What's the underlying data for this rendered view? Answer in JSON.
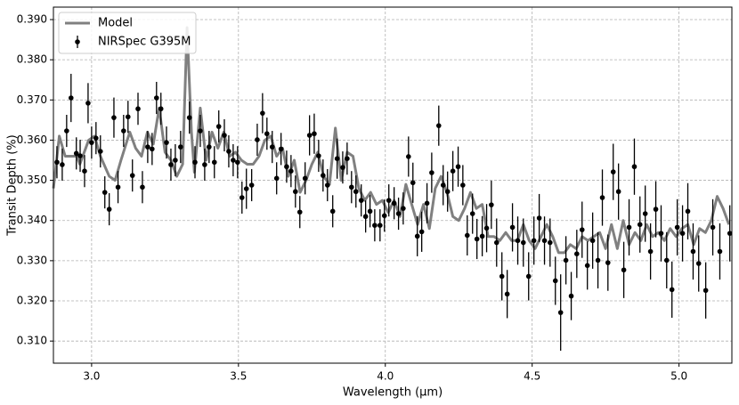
{
  "chart_data": {
    "type": "errorbar",
    "xlabel": "Wavelength (μm)",
    "ylabel": "Transit Depth (%)",
    "xlim": [
      2.87,
      5.18
    ],
    "ylim": [
      0.3045,
      0.3931
    ],
    "xticks": [
      {
        "value": 3,
        "label": "3.0"
      },
      {
        "value": 3.5,
        "label": "3.5"
      },
      {
        "value": 4,
        "label": "4.0"
      },
      {
        "value": 4.5,
        "label": "4.5"
      },
      {
        "value": 5,
        "label": "5.0"
      }
    ],
    "yticks": [
      {
        "value": 0.31,
        "label": "0.310"
      },
      {
        "value": 0.32,
        "label": "0.320"
      },
      {
        "value": 0.33,
        "label": "0.330"
      },
      {
        "value": 0.34,
        "label": "0.340"
      },
      {
        "value": 0.35,
        "label": "0.350"
      },
      {
        "value": 0.36,
        "label": "0.360"
      },
      {
        "value": 0.37,
        "label": "0.370"
      },
      {
        "value": 0.38,
        "label": "0.380"
      },
      {
        "value": 0.39,
        "label": "0.390"
      }
    ],
    "grid": true,
    "legend": "upper left",
    "series": [
      {
        "name": "Model",
        "color": "#808080",
        "x": [
          2.87,
          2.89,
          2.91,
          2.95,
          2.96,
          2.99,
          3.01,
          3.03,
          3.06,
          3.08,
          3.1,
          3.13,
          3.15,
          3.17,
          3.19,
          3.21,
          3.23,
          3.25,
          3.27,
          3.29,
          3.31,
          3.325,
          3.34,
          3.35,
          3.37,
          3.39,
          3.41,
          3.43,
          3.45,
          3.47,
          3.49,
          3.51,
          3.53,
          3.55,
          3.57,
          3.59,
          3.61,
          3.63,
          3.65,
          3.67,
          3.69,
          3.71,
          3.73,
          3.75,
          3.77,
          3.79,
          3.81,
          3.83,
          3.85,
          3.87,
          3.89,
          3.91,
          3.93,
          3.95,
          3.97,
          3.99,
          4.01,
          4.03,
          4.05,
          4.07,
          4.09,
          4.11,
          4.13,
          4.15,
          4.17,
          4.19,
          4.21,
          4.23,
          4.25,
          4.27,
          4.29,
          4.31,
          4.33,
          4.35,
          4.37,
          4.39,
          4.41,
          4.43,
          4.45,
          4.47,
          4.49,
          4.51,
          4.53,
          4.55,
          4.57,
          4.59,
          4.61,
          4.63,
          4.65,
          4.67,
          4.69,
          4.71,
          4.73,
          4.75,
          4.77,
          4.79,
          4.81,
          4.83,
          4.85,
          4.87,
          4.89,
          4.91,
          4.93,
          4.95,
          4.97,
          4.99,
          5.01,
          5.03,
          5.05,
          5.07,
          5.09,
          5.11,
          5.13,
          5.15,
          5.17
        ],
        "values": [
          0.348,
          0.361,
          0.356,
          0.356,
          0.354,
          0.36,
          0.361,
          0.356,
          0.351,
          0.35,
          0.355,
          0.362,
          0.358,
          0.356,
          0.362,
          0.359,
          0.368,
          0.357,
          0.355,
          0.351,
          0.354,
          0.388,
          0.362,
          0.352,
          0.368,
          0.355,
          0.362,
          0.358,
          0.362,
          0.356,
          0.357,
          0.355,
          0.354,
          0.354,
          0.356,
          0.36,
          0.361,
          0.356,
          0.358,
          0.351,
          0.355,
          0.347,
          0.35,
          0.354,
          0.357,
          0.351,
          0.349,
          0.363,
          0.35,
          0.357,
          0.356,
          0.348,
          0.345,
          0.347,
          0.344,
          0.345,
          0.342,
          0.345,
          0.341,
          0.349,
          0.344,
          0.339,
          0.344,
          0.338,
          0.348,
          0.351,
          0.347,
          0.341,
          0.34,
          0.343,
          0.347,
          0.343,
          0.344,
          0.336,
          0.336,
          0.335,
          0.337,
          0.335,
          0.335,
          0.339,
          0.335,
          0.333,
          0.336,
          0.339,
          0.336,
          0.332,
          0.332,
          0.334,
          0.333,
          0.336,
          0.335,
          0.336,
          0.337,
          0.333,
          0.339,
          0.333,
          0.34,
          0.334,
          0.337,
          0.335,
          0.339,
          0.336,
          0.337,
          0.335,
          0.338,
          0.336,
          0.338,
          0.339,
          0.334,
          0.338,
          0.337,
          0.34,
          0.346,
          0.343,
          0.339
        ]
      },
      {
        "name": "NIRSpec G395M",
        "color": "#000000",
        "x": [
          2.882,
          2.9,
          2.915,
          2.93,
          2.948,
          2.961,
          2.976,
          2.988,
          3.0,
          3.015,
          3.03,
          3.045,
          3.06,
          3.076,
          3.09,
          3.109,
          3.124,
          3.139,
          3.158,
          3.173,
          3.191,
          3.206,
          3.221,
          3.236,
          3.255,
          3.27,
          3.285,
          3.303,
          3.333,
          3.352,
          3.37,
          3.385,
          3.4,
          3.418,
          3.433,
          3.452,
          3.467,
          3.482,
          3.497,
          3.512,
          3.527,
          3.545,
          3.564,
          3.582,
          3.597,
          3.615,
          3.63,
          3.645,
          3.664,
          3.679,
          3.694,
          3.709,
          3.727,
          3.742,
          3.758,
          3.773,
          3.788,
          3.803,
          3.821,
          3.836,
          3.855,
          3.87,
          3.885,
          3.9,
          3.918,
          3.933,
          3.948,
          3.964,
          3.982,
          3.997,
          4.012,
          4.03,
          4.045,
          4.061,
          4.079,
          4.094,
          4.109,
          4.124,
          4.142,
          4.158,
          4.182,
          4.197,
          4.212,
          4.23,
          4.248,
          4.264,
          4.279,
          4.297,
          4.312,
          4.33,
          4.345,
          4.361,
          4.379,
          4.397,
          4.415,
          4.433,
          4.451,
          4.47,
          4.488,
          4.506,
          4.524,
          4.542,
          4.561,
          4.579,
          4.597,
          4.615,
          4.633,
          4.652,
          4.67,
          4.688,
          4.706,
          4.724,
          4.739,
          4.758,
          4.776,
          4.794,
          4.812,
          4.83,
          4.848,
          4.867,
          4.885,
          4.903,
          4.921,
          4.939,
          4.958,
          4.976,
          4.994,
          5.012,
          5.03,
          5.048,
          5.067,
          5.091,
          5.115,
          5.139,
          5.173
        ],
        "values": [
          0.3545,
          0.3539,
          0.3623,
          0.3705,
          0.3567,
          0.3561,
          0.3523,
          0.3692,
          0.3594,
          0.3605,
          0.3572,
          0.347,
          0.3428,
          0.3656,
          0.3483,
          0.3623,
          0.3658,
          0.3512,
          0.3678,
          0.3483,
          0.3583,
          0.3578,
          0.3705,
          0.3678,
          0.3594,
          0.3539,
          0.355,
          0.3583,
          0.3656,
          0.3545,
          0.3623,
          0.3539,
          0.3583,
          0.3545,
          0.3634,
          0.3612,
          0.3572,
          0.355,
          0.3545,
          0.3457,
          0.3479,
          0.3488,
          0.3601,
          0.3667,
          0.3616,
          0.3583,
          0.3505,
          0.3578,
          0.3534,
          0.3523,
          0.3472,
          0.3421,
          0.3505,
          0.3612,
          0.3616,
          0.3561,
          0.3512,
          0.3488,
          0.3423,
          0.3554,
          0.3532,
          0.3554,
          0.3483,
          0.3472,
          0.345,
          0.341,
          0.3423,
          0.3388,
          0.3388,
          0.3412,
          0.345,
          0.3443,
          0.3417,
          0.343,
          0.3559,
          0.3494,
          0.3361,
          0.3372,
          0.3443,
          0.3519,
          0.3636,
          0.3488,
          0.3472,
          0.3523,
          0.3534,
          0.3488,
          0.3363,
          0.3417,
          0.3354,
          0.3361,
          0.3381,
          0.3439,
          0.3345,
          0.3261,
          0.3217,
          0.3383,
          0.335,
          0.3345,
          0.3261,
          0.335,
          0.3406,
          0.335,
          0.3345,
          0.325,
          0.3171,
          0.3301,
          0.3212,
          0.3317,
          0.3377,
          0.3288,
          0.335,
          0.3301,
          0.3457,
          0.3295,
          0.3521,
          0.3472,
          0.3277,
          0.3383,
          0.3534,
          0.339,
          0.3417,
          0.3323,
          0.3428,
          0.3368,
          0.3301,
          0.3228,
          0.3383,
          0.3368,
          0.3423,
          0.3323,
          0.3293,
          0.3226,
          0.3383,
          0.3323,
          0.3368
        ],
        "errors": [
          0.004,
          0.004,
          0.004,
          0.006,
          0.004,
          0.004,
          0.004,
          0.005,
          0.004,
          0.004,
          0.004,
          0.004,
          0.004,
          0.005,
          0.004,
          0.004,
          0.004,
          0.004,
          0.004,
          0.004,
          0.004,
          0.004,
          0.004,
          0.004,
          0.004,
          0.004,
          0.004,
          0.004,
          0.004,
          0.004,
          0.004,
          0.004,
          0.004,
          0.004,
          0.004,
          0.004,
          0.004,
          0.004,
          0.004,
          0.004,
          0.005,
          0.004,
          0.004,
          0.005,
          0.004,
          0.004,
          0.004,
          0.004,
          0.004,
          0.004,
          0.004,
          0.004,
          0.004,
          0.005,
          0.005,
          0.004,
          0.004,
          0.004,
          0.004,
          0.005,
          0.004,
          0.004,
          0.004,
          0.004,
          0.004,
          0.004,
          0.004,
          0.004,
          0.004,
          0.004,
          0.004,
          0.004,
          0.004,
          0.004,
          0.005,
          0.005,
          0.005,
          0.005,
          0.005,
          0.005,
          0.005,
          0.005,
          0.005,
          0.005,
          0.005,
          0.005,
          0.005,
          0.005,
          0.005,
          0.005,
          0.006,
          0.006,
          0.006,
          0.006,
          0.006,
          0.006,
          0.006,
          0.006,
          0.006,
          0.006,
          0.006,
          0.006,
          0.006,
          0.006,
          0.0095,
          0.006,
          0.006,
          0.006,
          0.007,
          0.006,
          0.007,
          0.007,
          0.007,
          0.007,
          0.007,
          0.007,
          0.007,
          0.007,
          0.007,
          0.007,
          0.007,
          0.007,
          0.007,
          0.007,
          0.007,
          0.007,
          0.007,
          0.007,
          0.007,
          0.007,
          0.007,
          0.007,
          0.007,
          0.007,
          0.007
        ]
      }
    ]
  }
}
